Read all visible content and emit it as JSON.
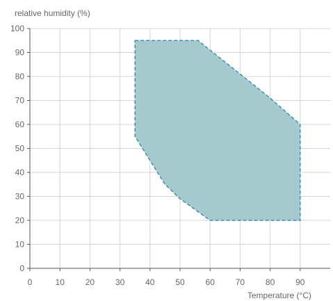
{
  "chart_data": {
    "type": "area",
    "title": "",
    "ylabel": "relative humidity (%)",
    "xlabel": "Temperature (°C)",
    "xlim": [
      0,
      100
    ],
    "ylim": [
      0,
      100
    ],
    "x_ticks": [
      0,
      10,
      20,
      30,
      40,
      50,
      60,
      70,
      80,
      90
    ],
    "y_ticks": [
      0,
      10,
      20,
      30,
      40,
      50,
      60,
      70,
      80,
      90,
      100
    ],
    "grid": true,
    "region": {
      "fill": "#a5c9cd",
      "stroke": "#3d8fb0",
      "dashed": true,
      "points": [
        [
          35,
          95
        ],
        [
          56,
          95
        ],
        [
          60,
          91
        ],
        [
          70,
          81
        ],
        [
          80,
          71
        ],
        [
          90,
          60
        ],
        [
          90,
          20
        ],
        [
          60,
          20
        ],
        [
          50,
          29
        ],
        [
          45,
          35
        ],
        [
          40,
          45
        ],
        [
          35,
          55
        ]
      ]
    }
  }
}
